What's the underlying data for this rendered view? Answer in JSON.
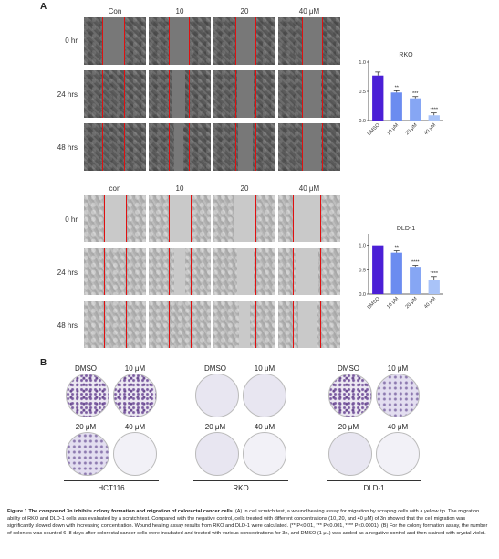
{
  "panel_a": {
    "letter": "A",
    "top_block": {
      "columns": [
        "Con",
        "10",
        "20",
        "40 μM"
      ],
      "rows": [
        "0 hr",
        "24 hrs",
        "48 hrs"
      ]
    },
    "bottom_block": {
      "columns": [
        "con",
        "10",
        "20",
        "40 μM"
      ],
      "rows": [
        "0 hr",
        "24 hrs",
        "48 hrs"
      ]
    }
  },
  "panel_b": {
    "letter": "B",
    "dish_labels": [
      "DMSO",
      "10 μM",
      "20 μM",
      "40 μM"
    ],
    "groups": [
      "HCT116",
      "RKO",
      "DLD-1"
    ]
  },
  "chart_data": [
    {
      "type": "bar",
      "title": "RKO",
      "categories": [
        "DMSO",
        "10 μM",
        "20 μM",
        "40 μM"
      ],
      "values": [
        0.77,
        0.48,
        0.38,
        0.09
      ],
      "errors": [
        0.06,
        0.03,
        0.03,
        0.04
      ],
      "significance": [
        "",
        "**",
        "***",
        "****"
      ],
      "yticks": [
        "0.0",
        "0.5",
        "1.0"
      ],
      "ylim": [
        0,
        1.0
      ],
      "colors": [
        "#4b1fd6",
        "#6b8cf0",
        "#86a6f4",
        "#a9c3f8"
      ]
    },
    {
      "type": "bar",
      "title": "DLD-1",
      "categories": [
        "DMSO",
        "10 μM",
        "20 μM",
        "40 μM"
      ],
      "values": [
        1.0,
        0.85,
        0.56,
        0.3
      ],
      "errors": [
        0.0,
        0.04,
        0.03,
        0.06
      ],
      "significance": [
        "",
        "**",
        "****",
        "****"
      ],
      "yticks": [
        "0.0",
        "0.5",
        "1.0"
      ],
      "ylim": [
        0,
        1.2
      ],
      "colors": [
        "#4b1fd6",
        "#6b8cf0",
        "#86a6f4",
        "#a9c3f8"
      ]
    }
  ],
  "caption": {
    "figure_label": "Figure 1",
    "title": "The compound 3n inhibits colony formation and migration of colorectal cancer cells.",
    "body": "(A) In cell scratch test, a wound healing assay for migration by scraping cells with a yellow tip. The migration ability of RKO and DLD-1 cells was evaluated by a scratch test. Compared with the negative control, cells treated with different concentrations (10, 20, and 40 μM) of 3n showed that the cell migration was significantly slowed down with increasing concentration. Wound healing assay results from RKO and DLD-1 were calculated. (** P<0.01, *** P<0.001, **** P<0.0001). (B) For the colony formation assay, the number of colonies was counted 6–8 days after colorectal cancer cells were incubated and treated with various concentrations for 3n, and DMSO (1 μL) was added as a negative control and then stained with crystal violet."
  }
}
